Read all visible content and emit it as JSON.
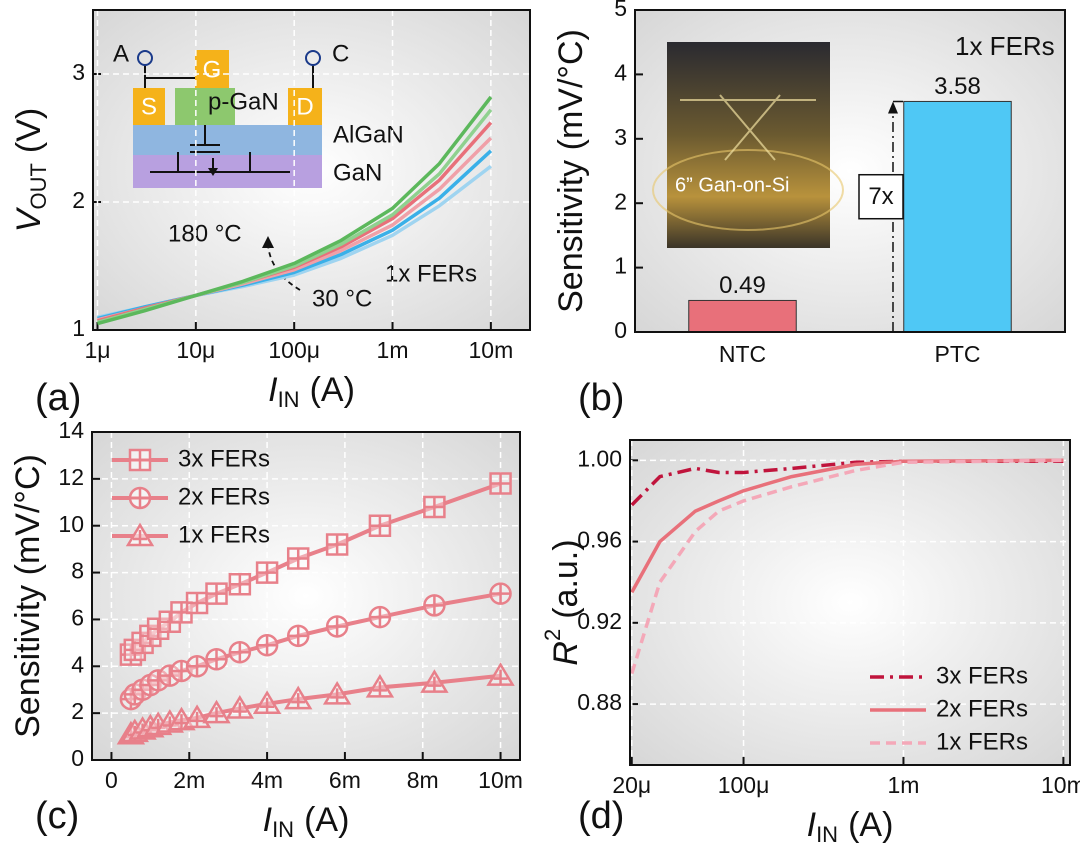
{
  "chart_data": [
    {
      "type": "line",
      "panel_label": "(a)",
      "xscale": "log",
      "xlim": [
        9e-07,
        0.025
      ],
      "xticks": [
        {
          "value": 1e-06,
          "label": "1μ"
        },
        {
          "value": 1e-05,
          "label": "10μ"
        },
        {
          "value": 0.0001,
          "label": "100μ"
        },
        {
          "value": 0.001,
          "label": "1m"
        },
        {
          "value": 0.01,
          "label": "10m"
        }
      ],
      "ylim": [
        1,
        3.5
      ],
      "yticks": [
        1,
        2,
        3
      ],
      "grid": true,
      "xlabel": {
        "symbol": "I",
        "sub": "IN",
        "unit": "(A)"
      },
      "ylabel": {
        "symbol": "V",
        "sub": "OUT",
        "unit": "(V)"
      },
      "x": [
        1e-06,
        3e-06,
        1e-05,
        3e-05,
        0.0001,
        0.0003,
        0.001,
        0.003,
        0.01
      ],
      "series": [
        {
          "color": "#9fd4f0",
          "values": [
            1.1,
            1.18,
            1.27,
            1.34,
            1.43,
            1.56,
            1.74,
            1.97,
            2.28
          ]
        },
        {
          "color": "#3ab0e8",
          "values": [
            1.09,
            1.18,
            1.27,
            1.35,
            1.45,
            1.59,
            1.78,
            2.03,
            2.4
          ]
        },
        {
          "color": "#f0a0a8",
          "values": [
            1.08,
            1.17,
            1.27,
            1.36,
            1.47,
            1.62,
            1.82,
            2.1,
            2.5
          ]
        },
        {
          "color": "#e8707a",
          "values": [
            1.07,
            1.17,
            1.27,
            1.37,
            1.49,
            1.65,
            1.87,
            2.17,
            2.62
          ]
        },
        {
          "color": "#8fd18f",
          "values": [
            1.06,
            1.16,
            1.27,
            1.37,
            1.5,
            1.67,
            1.9,
            2.22,
            2.72
          ]
        },
        {
          "color": "#5cb85c",
          "values": [
            1.05,
            1.15,
            1.27,
            1.38,
            1.52,
            1.7,
            1.95,
            2.3,
            2.82
          ]
        }
      ],
      "annotations": [
        "180 °C",
        "30 °C",
        "1x FERs"
      ],
      "inset_labels": [
        "A",
        "C",
        "G",
        "S",
        "D",
        "p-GaN",
        "AlGaN",
        "GaN"
      ]
    },
    {
      "type": "bar",
      "panel_label": "(b)",
      "categories": [
        "NTC",
        "PTC"
      ],
      "values": [
        0.49,
        3.58
      ],
      "colors": [
        "#e8707a",
        "#4fc8f5"
      ],
      "ylim": [
        0,
        5
      ],
      "yticks": [
        0,
        1,
        2,
        3,
        4,
        5
      ],
      "grid": false,
      "ylabel": "Sensitivity (mV/°C)",
      "annotations": [
        "1x FERs",
        "7x"
      ],
      "photo_label": "6” Gan-on-Si"
    },
    {
      "type": "line",
      "panel_label": "(c)",
      "xscale": "linear",
      "xlim": [
        -0.0005,
        0.0105
      ],
      "xticks": [
        0,
        {
          "value": 0.002,
          "label": "2m"
        },
        {
          "value": 0.004,
          "label": "4m"
        },
        {
          "value": 0.006,
          "label": "6m"
        },
        {
          "value": 0.008,
          "label": "8m"
        },
        {
          "value": 0.01,
          "label": "10m"
        }
      ],
      "ylim": [
        0,
        14
      ],
      "yticks": [
        0,
        2,
        4,
        6,
        8,
        10,
        12,
        14
      ],
      "grid": true,
      "legend": "upper left",
      "xlabel": {
        "symbol": "I",
        "sub": "IN",
        "unit": "(A)"
      },
      "ylabel": "Sensitivity (mV/°C)",
      "x": [
        0.0005,
        0.0006,
        0.0008,
        0.001,
        0.0012,
        0.0015,
        0.0018,
        0.0022,
        0.0027,
        0.0033,
        0.004,
        0.0048,
        0.0058,
        0.0069,
        0.0083,
        0.01
      ],
      "series": [
        {
          "name": "3x FERs",
          "color": "#e8808a",
          "marker": "square",
          "values": [
            4.5,
            4.7,
            5.0,
            5.3,
            5.6,
            5.9,
            6.3,
            6.7,
            7.1,
            7.5,
            8.0,
            8.6,
            9.2,
            10.0,
            10.8,
            11.8
          ]
        },
        {
          "name": "2x FERs",
          "color": "#e8808a",
          "marker": "circle",
          "values": [
            2.6,
            2.8,
            3.0,
            3.2,
            3.4,
            3.6,
            3.8,
            4.0,
            4.3,
            4.6,
            4.9,
            5.3,
            5.7,
            6.1,
            6.6,
            7.1
          ]
        },
        {
          "name": "1x FERs",
          "color": "#e8808a",
          "marker": "triangle",
          "values": [
            1.1,
            1.2,
            1.3,
            1.4,
            1.5,
            1.6,
            1.7,
            1.8,
            2.0,
            2.2,
            2.4,
            2.6,
            2.8,
            3.1,
            3.3,
            3.6
          ]
        }
      ]
    },
    {
      "type": "line",
      "panel_label": "(d)",
      "xscale": "log",
      "xlim": [
        1.95e-05,
        0.011
      ],
      "xticks": [
        {
          "value": 2e-05,
          "label": "20μ"
        },
        {
          "value": 0.0001,
          "label": "100μ"
        },
        {
          "value": 0.001,
          "label": "1m"
        },
        {
          "value": 0.01,
          "label": "10m"
        }
      ],
      "ylim": [
        0.85,
        1.01
      ],
      "yticks": [
        0.88,
        0.92,
        0.96,
        {
          "value": 1,
          "label": "1.00"
        }
      ],
      "grid": true,
      "legend": "lower right",
      "xlabel": {
        "symbol": "I",
        "sub": "IN",
        "unit": "(A)"
      },
      "ylabel": {
        "symbol": "R",
        "sup": "2",
        "unit": "(a.u.)"
      },
      "x": [
        2e-05,
        3e-05,
        5e-05,
        7e-05,
        0.0001,
        0.0002,
        0.0005,
        0.001,
        0.01
      ],
      "series": [
        {
          "name": "3x FERs",
          "color": "#c0143c",
          "line_style": "dashdot",
          "values": [
            0.978,
            0.992,
            0.996,
            0.994,
            0.994,
            0.996,
            0.999,
            0.9995,
            0.9995
          ]
        },
        {
          "name": "2x FERs",
          "color": "#e8707a",
          "line_style": "solid",
          "values": [
            0.935,
            0.96,
            0.975,
            0.98,
            0.985,
            0.992,
            0.998,
            0.9995,
            1.0
          ]
        },
        {
          "name": "1x FERs",
          "color": "#f4a8b8",
          "line_style": "dashed",
          "values": [
            0.895,
            0.94,
            0.965,
            0.975,
            0.98,
            0.987,
            0.995,
            0.999,
            1.0
          ]
        }
      ]
    }
  ]
}
